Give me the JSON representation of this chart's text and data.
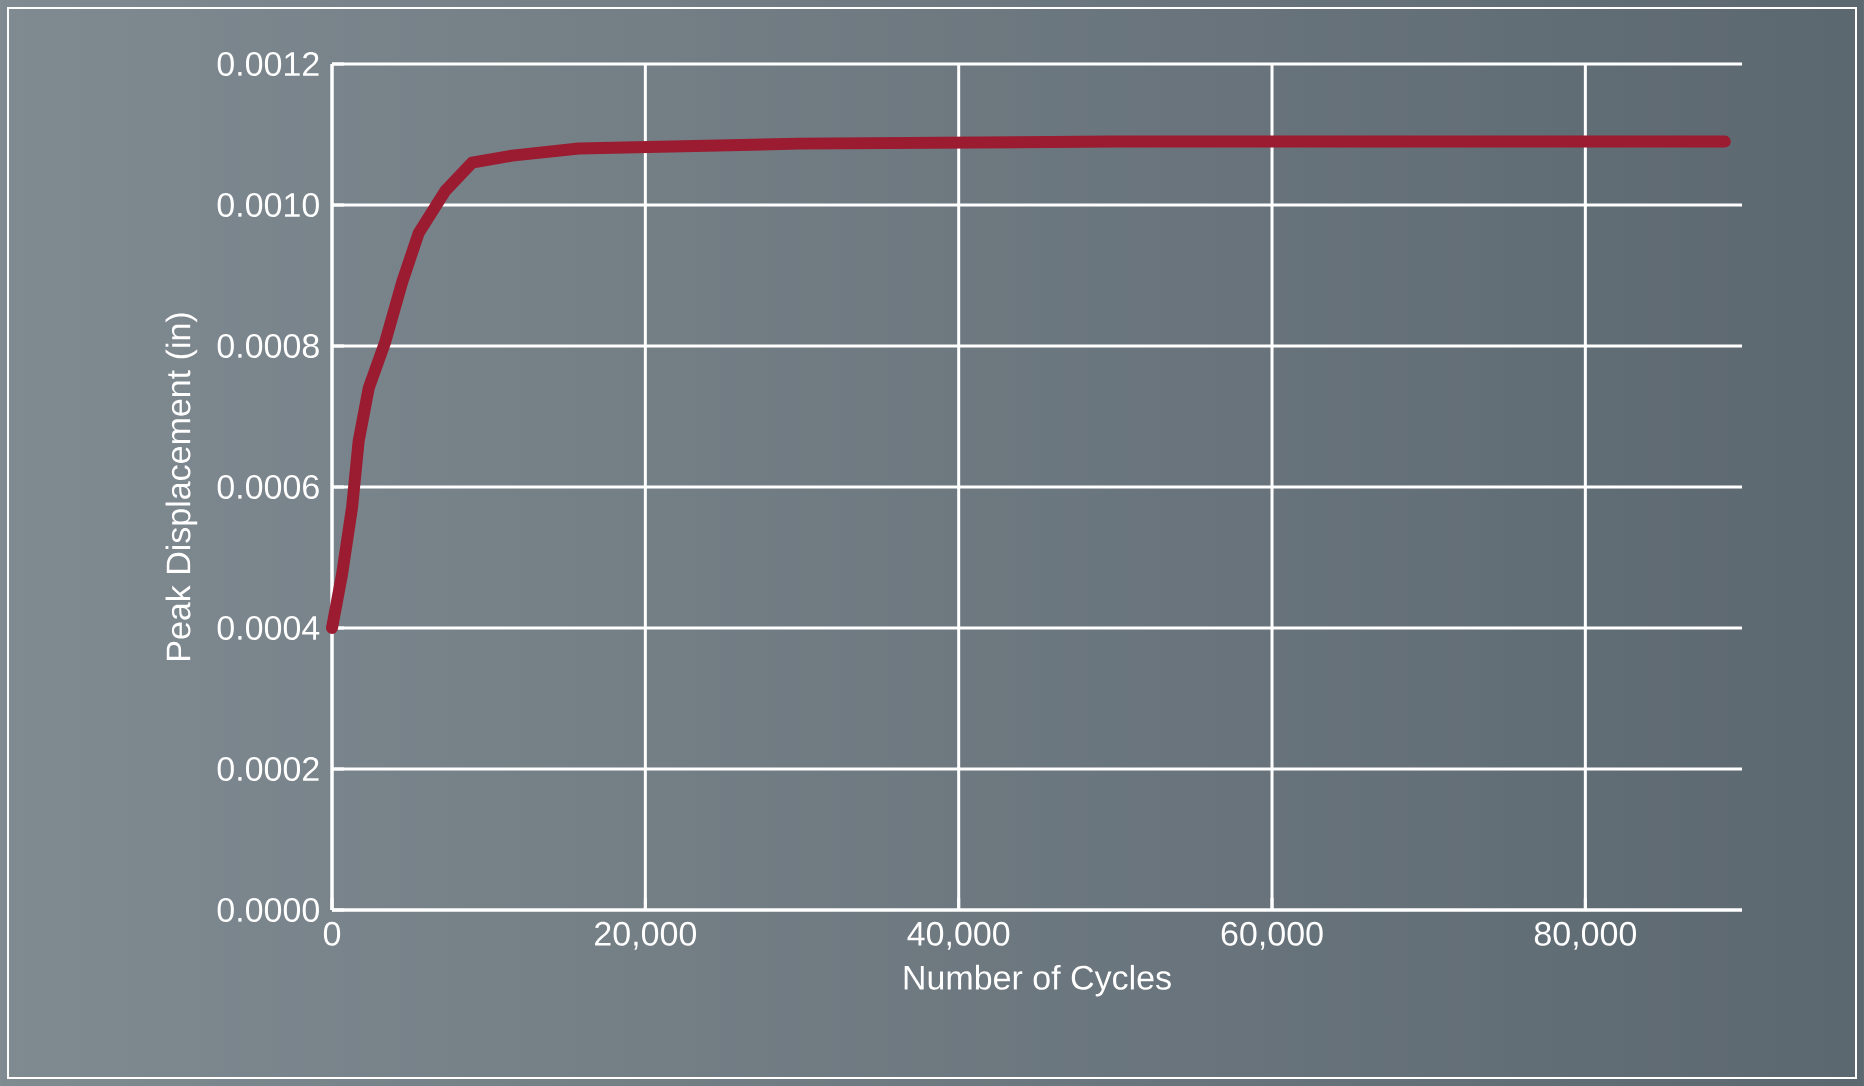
{
  "chart_data": {
    "type": "line",
    "xlabel": "Number of Cycles",
    "ylabel": "Peak Displacement (in)",
    "series": [
      {
        "color": "#9b1b30",
        "x": [
          0,
          640,
          1280,
          1700,
          2340,
          3400,
          4470,
          5530,
          7230,
          8940,
          11490,
          15750,
          29800,
          50000,
          70000,
          88900
        ],
        "values": [
          0.0004,
          0.000476,
          0.000571,
          0.000665,
          0.00074,
          0.000806,
          0.00089,
          0.00096,
          0.00102,
          0.00106,
          0.00107,
          0.00108,
          0.001087,
          0.00109,
          0.00109,
          0.00109
        ]
      }
    ],
    "xlim": [
      0,
      90000
    ],
    "ylim": [
      0,
      0.0012
    ],
    "xticks": [
      0,
      {
        "value": 20000,
        "label": "20,000"
      },
      {
        "value": 40000,
        "label": "40,000"
      },
      {
        "value": 60000,
        "label": "60,000"
      },
      {
        "value": 80000,
        "label": "80,000"
      }
    ],
    "yticks": [
      {
        "value": 0,
        "label": "0.0000"
      },
      {
        "value": 0.0002,
        "label": "0.0002"
      },
      {
        "value": 0.0004,
        "label": "0.0004"
      },
      {
        "value": 0.0006,
        "label": "0.0006"
      },
      {
        "value": 0.0008,
        "label": "0.0008"
      },
      {
        "value": 0.001,
        "label": "0.0010"
      },
      {
        "value": 0.0012,
        "label": "0.0012"
      }
    ],
    "grid": true,
    "marker": "none",
    "line_style": "solid"
  }
}
